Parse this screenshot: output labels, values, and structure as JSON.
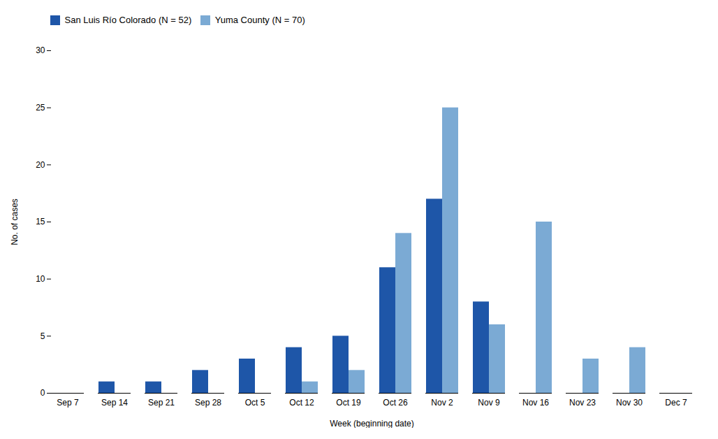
{
  "chart_data": {
    "type": "bar",
    "categories": [
      "Sep 7",
      "Sep 14",
      "Sep 21",
      "Sep 28",
      "Oct 5",
      "Oct 12",
      "Oct 19",
      "Oct 26",
      "Nov 2",
      "Nov 9",
      "Nov 16",
      "Nov 23",
      "Nov 30",
      "Dec 7"
    ],
    "series": [
      {
        "name": "San Luis Río Colorado (N = 52)",
        "color": "#1E56A8",
        "values": [
          0,
          1,
          1,
          2,
          3,
          4,
          5,
          11,
          17,
          8,
          0,
          0,
          0,
          0
        ]
      },
      {
        "name": "Yuma County (N = 70)",
        "color": "#7BAAD4",
        "values": [
          0,
          0,
          0,
          0,
          0,
          1,
          2,
          14,
          25,
          6,
          15,
          3,
          4,
          0
        ]
      }
    ],
    "xlabel": "Week (beginning date)",
    "ylabel": "No. of cases",
    "ylim": [
      0,
      30
    ],
    "yticks": [
      0,
      5,
      10,
      15,
      20,
      25,
      30
    ],
    "grid": false,
    "legend": "upper left"
  }
}
